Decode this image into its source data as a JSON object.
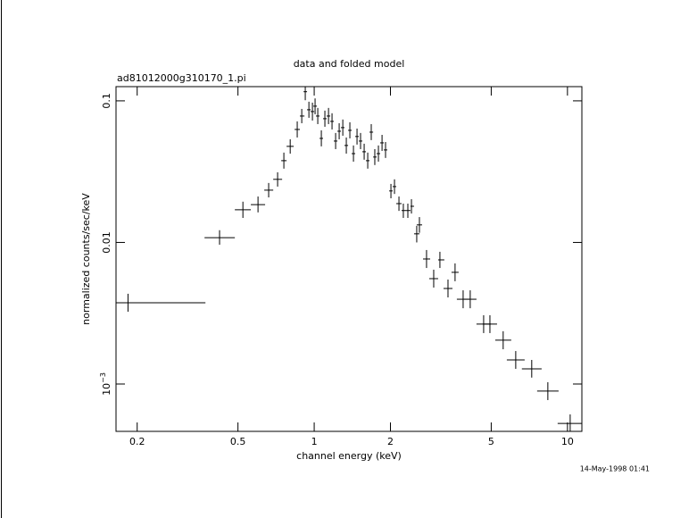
{
  "chart_data": {
    "type": "errorbar",
    "title": "data and folded model",
    "subtitle": "ad81012000g310170_1.pi",
    "xlabel": "channel energy (keV)",
    "ylabel": "normalized counts/sec/keV",
    "footer": "14-May-1998 01:41",
    "xscale": "log",
    "yscale": "log",
    "color": "#000000",
    "xlim": [
      0.165,
      11.4
    ],
    "ylim": [
      0.000463,
      0.126
    ],
    "xticks": [
      0.2,
      0.5,
      1,
      2,
      5,
      10
    ],
    "yticks": [
      0.1,
      0.01,
      {
        "value": 0.001,
        "label": "10",
        "exponent": "−3"
      }
    ],
    "x": [
      0.184,
      0.423,
      0.523,
      0.6,
      0.661,
      0.717,
      0.759,
      0.804,
      0.857,
      0.893,
      0.922,
      0.953,
      0.984,
      1.008,
      1.033,
      1.067,
      1.102,
      1.139,
      1.176,
      1.215,
      1.255,
      1.297,
      1.339,
      1.383,
      1.429,
      1.476,
      1.524,
      1.575,
      1.627,
      1.68,
      1.735,
      1.793,
      1.853,
      1.913,
      2.009,
      2.075,
      2.161,
      2.249,
      2.343,
      2.421,
      2.54,
      2.603,
      2.777,
      2.964,
      3.136,
      3.375,
      3.599,
      3.873,
      4.131,
      4.667,
      4.941,
      5.574,
      6.248,
      7.226,
      8.366,
      10.25
    ],
    "values": [
      0.00375,
      0.0108,
      0.017,
      0.0185,
      0.0234,
      0.0279,
      0.0378,
      0.0477,
      0.0628,
      0.0781,
      0.116,
      0.0865,
      0.084,
      0.0917,
      0.0781,
      0.0543,
      0.0748,
      0.0781,
      0.0716,
      0.052,
      0.061,
      0.0647,
      0.0484,
      0.0619,
      0.0424,
      0.056,
      0.052,
      0.0437,
      0.0378,
      0.0601,
      0.0401,
      0.0424,
      0.0505,
      0.045,
      0.0231,
      0.0248,
      0.0188,
      0.0168,
      0.0168,
      0.018,
      0.0115,
      0.0133,
      0.00764,
      0.00555,
      0.00753,
      0.00473,
      0.00615,
      0.00397,
      0.00397,
      0.00265,
      0.00265,
      0.00204,
      0.00148,
      0.00128,
      0.000891,
      0.000527
    ],
    "xmin": [
      0.165,
      0.369,
      0.486,
      0.562,
      0.635,
      0.689,
      0.741,
      0.778,
      0.837,
      0.878,
      0.908,
      0.937,
      0.968,
      0.992,
      1.016,
      1.05,
      1.084,
      1.12,
      1.157,
      1.195,
      1.235,
      1.275,
      1.317,
      1.361,
      1.406,
      1.452,
      1.5,
      1.549,
      1.6,
      1.653,
      1.709,
      1.764,
      1.822,
      1.883,
      1.977,
      2.041,
      2.109,
      2.213,
      2.306,
      2.4,
      2.479,
      2.54,
      2.69,
      2.845,
      3.086,
      3.241,
      3.485,
      3.658,
      3.907,
      4.373,
      4.627,
      5.186,
      5.762,
      6.607,
      7.59,
      9.146
    ],
    "xmax": [
      0.372,
      0.486,
      0.562,
      0.64,
      0.689,
      0.747,
      0.778,
      0.83,
      0.878,
      0.915,
      0.937,
      0.968,
      1.0,
      1.025,
      1.05,
      1.084,
      1.12,
      1.157,
      1.195,
      1.235,
      1.275,
      1.317,
      1.361,
      1.406,
      1.452,
      1.5,
      1.549,
      1.6,
      1.653,
      1.709,
      1.764,
      1.822,
      1.883,
      1.944,
      2.041,
      2.109,
      2.213,
      2.306,
      2.4,
      2.479,
      2.603,
      2.668,
      2.87,
      3.086,
      3.265,
      3.515,
      3.718,
      4.1,
      4.373,
      4.98,
      5.272,
      5.998,
      6.776,
      7.907,
      9.224,
      11.48
    ],
    "ymin": [
      0.00324,
      0.00964,
      0.0149,
      0.0163,
      0.0208,
      0.0248,
      0.0332,
      0.0424,
      0.0551,
      0.0695,
      0.101,
      0.0759,
      0.0726,
      0.0804,
      0.0685,
      0.0477,
      0.0656,
      0.0685,
      0.0628,
      0.0456,
      0.0535,
      0.0567,
      0.0424,
      0.0543,
      0.0372,
      0.0491,
      0.0456,
      0.0384,
      0.0332,
      0.0528,
      0.0352,
      0.0372,
      0.0443,
      0.0395,
      0.0205,
      0.022,
      0.0167,
      0.0149,
      0.0149,
      0.016,
      0.01,
      0.0117,
      0.0066,
      0.0048,
      0.0066,
      0.00409,
      0.00532,
      0.00343,
      0.00343,
      0.00229,
      0.00229,
      0.00176,
      0.00128,
      0.00111,
      0.00077,
      0.000456
    ],
    "ymax": [
      0.00434,
      0.0122,
      0.0194,
      0.0211,
      0.0263,
      0.0313,
      0.0431,
      0.0535,
      0.0716,
      0.0877,
      0.132,
      0.0986,
      0.0971,
      0.104,
      0.0891,
      0.0619,
      0.0853,
      0.0891,
      0.0817,
      0.0593,
      0.0695,
      0.0738,
      0.0551,
      0.0706,
      0.0484,
      0.0637,
      0.0593,
      0.0498,
      0.0431,
      0.0685,
      0.0456,
      0.0484,
      0.0575,
      0.0512,
      0.0259,
      0.0279,
      0.0211,
      0.0188,
      0.0188,
      0.0202,
      0.0131,
      0.0151,
      0.00884,
      0.00642,
      0.00859,
      0.00547,
      0.00711,
      0.00459,
      0.00459,
      0.00306,
      0.00306,
      0.00236,
      0.00171,
      0.00148,
      0.00103,
      0.00061
    ]
  }
}
